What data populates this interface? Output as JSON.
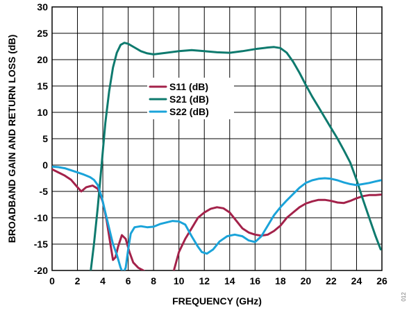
{
  "chart_data": {
    "type": "line",
    "xlabel": "FREQUENCY (GHz)",
    "ylabel": "BROADBAND GAIN AND RETURN LOSS (dB)",
    "xlim": [
      0,
      26
    ],
    "ylim": [
      -20,
      30
    ],
    "xticks": [
      0,
      2,
      4,
      6,
      8,
      10,
      12,
      14,
      16,
      18,
      20,
      22,
      24,
      26
    ],
    "yticks": [
      -20,
      -15,
      -10,
      -5,
      0,
      5,
      10,
      15,
      20,
      25,
      30
    ],
    "grid": true,
    "legend_position": "center-left",
    "figure_id": "012",
    "series": [
      {
        "name": "S11 (dB)",
        "color": "#a3224a",
        "x": [
          0,
          0.5,
          1,
          1.5,
          2,
          2.3,
          2.7,
          3.2,
          3.6,
          4,
          4.3,
          4.6,
          4.8,
          5,
          5.2,
          5.5,
          5.8,
          6.1,
          6.4,
          6.8,
          7.2,
          7.5,
          7.7,
          8.5,
          9.4,
          9.6,
          10,
          10.5,
          11,
          11.5,
          12,
          12.5,
          13,
          13.5,
          14,
          14.5,
          15,
          15.5,
          16,
          16.5,
          17,
          17.5,
          18,
          18.5,
          19,
          19.5,
          20,
          20.5,
          21,
          21.5,
          22,
          22.5,
          23,
          23.5,
          24,
          24.5,
          25,
          25.5,
          25.9
        ],
        "y": [
          -0.8,
          -1.4,
          -2,
          -2.8,
          -4.2,
          -5,
          -4.2,
          -3.9,
          -4.5,
          -7,
          -10.5,
          -15,
          -18,
          -17.5,
          -15.5,
          -13.3,
          -14,
          -16.5,
          -18.5,
          -19.5,
          -20,
          -20.5,
          -21,
          -21,
          -21,
          -20,
          -16.5,
          -14,
          -12,
          -10,
          -9,
          -8.3,
          -8,
          -8.2,
          -9,
          -10.5,
          -12,
          -12.8,
          -13.2,
          -13.4,
          -13.2,
          -12.5,
          -11.5,
          -10,
          -9,
          -8,
          -7.3,
          -6.9,
          -6.6,
          -6.6,
          -6.8,
          -7.1,
          -7.2,
          -6.8,
          -6.3,
          -5.9,
          -5.7,
          -5.7,
          -5.6
        ]
      },
      {
        "name": "S21 (dB)",
        "color": "#0e7a6e",
        "x": [
          3.0,
          3.3,
          3.6,
          3.9,
          4.2,
          4.5,
          4.8,
          5.1,
          5.4,
          5.7,
          6.0,
          6.5,
          7.0,
          7.5,
          8,
          9,
          10,
          11,
          12,
          13,
          14,
          15,
          16,
          17,
          17.5,
          18,
          18.5,
          19,
          19.5,
          20,
          20.5,
          21,
          21.5,
          22,
          22.5,
          23,
          23.5,
          24,
          24.5,
          25,
          25.5,
          25.9
        ],
        "y": [
          -21,
          -15,
          -8,
          0,
          8,
          14,
          18.5,
          21.3,
          22.8,
          23.2,
          23.0,
          22.3,
          21.6,
          21.2,
          21.0,
          21.3,
          21.6,
          21.8,
          21.6,
          21.4,
          21.3,
          21.6,
          22.0,
          22.3,
          22.4,
          22.2,
          21.3,
          19.6,
          17.5,
          15.2,
          13,
          11,
          9,
          7,
          5,
          2.8,
          0.5,
          -2.8,
          -6.5,
          -10,
          -13.5,
          -16
        ]
      },
      {
        "name": "S22 (dB)",
        "color": "#1aa3d9",
        "x": [
          0,
          0.5,
          1,
          1.5,
          2,
          2.5,
          3,
          3.3,
          3.6,
          3.9,
          4.2,
          4.5,
          4.8,
          5.1,
          5.4,
          5.6,
          5.8,
          6.0,
          6.2,
          6.5,
          7,
          7.5,
          8,
          8.5,
          9,
          9.5,
          10,
          10.5,
          11,
          11.5,
          11.8,
          12.2,
          12.7,
          13.2,
          13.8,
          14.4,
          15,
          15.5,
          16,
          16.5,
          17,
          17.5,
          18,
          18.5,
          19,
          19.5,
          20,
          20.5,
          21,
          21.5,
          22,
          22.5,
          23,
          23.5,
          24,
          24.5,
          25,
          25.5,
          25.9
        ],
        "y": [
          -0.3,
          -0.4,
          -0.6,
          -1,
          -1.4,
          -1.8,
          -2.3,
          -2.8,
          -3.8,
          -6,
          -9,
          -12,
          -15,
          -17,
          -19.5,
          -20.5,
          -19.5,
          -16,
          -13,
          -11.8,
          -11.6,
          -11.8,
          -11.7,
          -11.2,
          -10.9,
          -10.6,
          -10.7,
          -11.3,
          -13.5,
          -15.5,
          -16.5,
          -16.8,
          -16,
          -14.5,
          -13.5,
          -13.2,
          -13.5,
          -14.3,
          -14.6,
          -13.5,
          -11.5,
          -9.5,
          -8,
          -6.7,
          -5.5,
          -4.3,
          -3.4,
          -2.9,
          -2.6,
          -2.5,
          -2.6,
          -2.9,
          -3.3,
          -3.6,
          -3.8,
          -3.6,
          -3.4,
          -3.1,
          -2.9
        ]
      }
    ]
  }
}
